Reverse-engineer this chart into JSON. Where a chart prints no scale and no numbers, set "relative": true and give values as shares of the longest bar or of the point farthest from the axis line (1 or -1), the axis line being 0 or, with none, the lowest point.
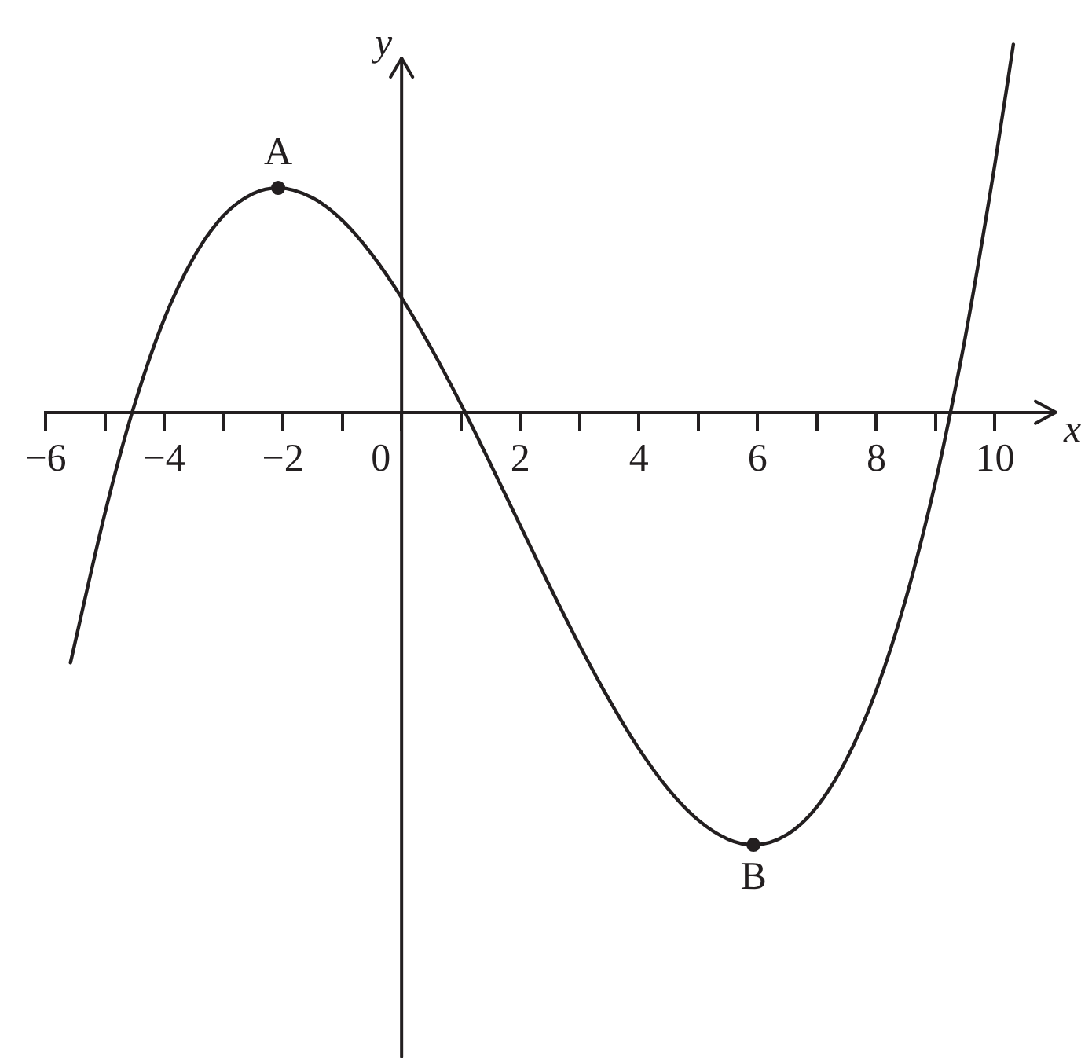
{
  "chart_data": {
    "type": "line",
    "xlabel": "x",
    "ylabel": "y",
    "relative": true,
    "xlim": [
      -6,
      11
    ],
    "xticks": [
      -6,
      {
        "value": -5,
        "label": null
      },
      -4,
      {
        "value": -3,
        "label": null
      },
      -2,
      {
        "value": -1,
        "label": null
      },
      0,
      {
        "value": 1,
        "label": null
      },
      2,
      {
        "value": 3,
        "label": null
      },
      4,
      {
        "value": 5,
        "label": null
      },
      6,
      {
        "value": 7,
        "label": null
      },
      8,
      {
        "value": 9,
        "label": null
      },
      10
    ],
    "series": [
      {
        "color": "#231f20",
        "x": [
          -5.58,
          -5,
          -4.54,
          -4,
          -3.5,
          -3,
          -2.5,
          -2.08,
          -1.5,
          -1,
          -0.5,
          0,
          0.5,
          1.07,
          1.5,
          2,
          2.5,
          3,
          3.5,
          4,
          4.5,
          5,
          5.5,
          5.93,
          6.5,
          7,
          7.5,
          8,
          8.5,
          9,
          9.25,
          9.5,
          10,
          10.31
        ],
        "values": [
          -0.579,
          -0.234,
          0,
          0.216,
          0.359,
          0.455,
          0.506,
          0.519,
          0.496,
          0.444,
          0.365,
          0.265,
          0.148,
          0,
          -0.12,
          -0.262,
          -0.403,
          -0.539,
          -0.665,
          -0.778,
          -0.872,
          -0.943,
          -0.987,
          -1,
          -0.976,
          -0.912,
          -0.802,
          -0.643,
          -0.43,
          -0.16,
          0,
          0.174,
          0.575,
          0.851
        ]
      },
      {
        "type": "scatter",
        "color": "#231f20",
        "marker": "circle",
        "x": [
          -2.08,
          5.93
        ],
        "values": [
          0.519,
          -1
        ]
      }
    ],
    "annotations": [
      {
        "text": "A",
        "x": -2.08,
        "y": 0.519
      },
      {
        "text": "B",
        "x": 5.93,
        "y": -1
      }
    ]
  }
}
